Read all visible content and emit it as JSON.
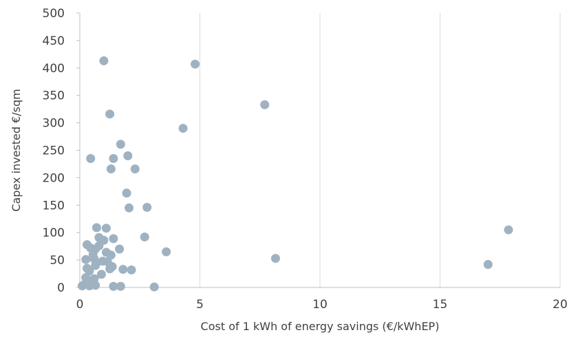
{
  "chart_data": {
    "type": "scatter",
    "xlabel": "Cost of 1 kWh of energy savings (€/kWhEP)",
    "ylabel": "Capex invested €/sqm",
    "xlim": [
      0,
      20
    ],
    "ylim": [
      0,
      500
    ],
    "xticks": [
      "0",
      "5",
      "10",
      "15",
      "20"
    ],
    "yticks": [
      "0",
      "50",
      "100",
      "150",
      "200",
      "250",
      "300",
      "350",
      "400",
      "450",
      "500"
    ],
    "grid": "vertical",
    "color": "#9fb2c2",
    "points": [
      [
        1.0,
        413
      ],
      [
        4.8,
        407
      ],
      [
        7.7,
        333
      ],
      [
        1.25,
        316
      ],
      [
        4.3,
        290
      ],
      [
        1.7,
        261
      ],
      [
        2.0,
        240
      ],
      [
        0.45,
        235
      ],
      [
        1.4,
        235
      ],
      [
        1.3,
        216
      ],
      [
        2.3,
        216
      ],
      [
        1.95,
        172
      ],
      [
        2.05,
        145
      ],
      [
        2.8,
        146
      ],
      [
        0.7,
        109
      ],
      [
        1.1,
        108
      ],
      [
        17.85,
        105
      ],
      [
        0.8,
        91
      ],
      [
        1.0,
        86
      ],
      [
        1.4,
        89
      ],
      [
        2.7,
        92
      ],
      [
        0.3,
        78
      ],
      [
        0.45,
        72
      ],
      [
        0.8,
        76
      ],
      [
        0.65,
        70
      ],
      [
        1.65,
        70
      ],
      [
        1.1,
        64
      ],
      [
        3.6,
        65
      ],
      [
        0.55,
        60
      ],
      [
        1.3,
        59
      ],
      [
        0.6,
        52
      ],
      [
        0.25,
        51
      ],
      [
        8.15,
        53
      ],
      [
        0.7,
        45
      ],
      [
        0.95,
        48
      ],
      [
        1.15,
        47
      ],
      [
        0.65,
        40
      ],
      [
        17.0,
        42
      ],
      [
        0.3,
        35
      ],
      [
        1.35,
        38
      ],
      [
        1.25,
        34
      ],
      [
        1.8,
        33
      ],
      [
        2.15,
        32
      ],
      [
        0.4,
        30
      ],
      [
        0.9,
        24
      ],
      [
        0.25,
        18
      ],
      [
        0.6,
        16
      ],
      [
        0.35,
        12
      ],
      [
        0.5,
        8
      ],
      [
        0.2,
        6
      ],
      [
        0.1,
        3
      ],
      [
        0.4,
        3
      ],
      [
        0.65,
        4
      ],
      [
        1.4,
        2
      ],
      [
        1.7,
        2
      ],
      [
        3.1,
        1
      ]
    ]
  }
}
